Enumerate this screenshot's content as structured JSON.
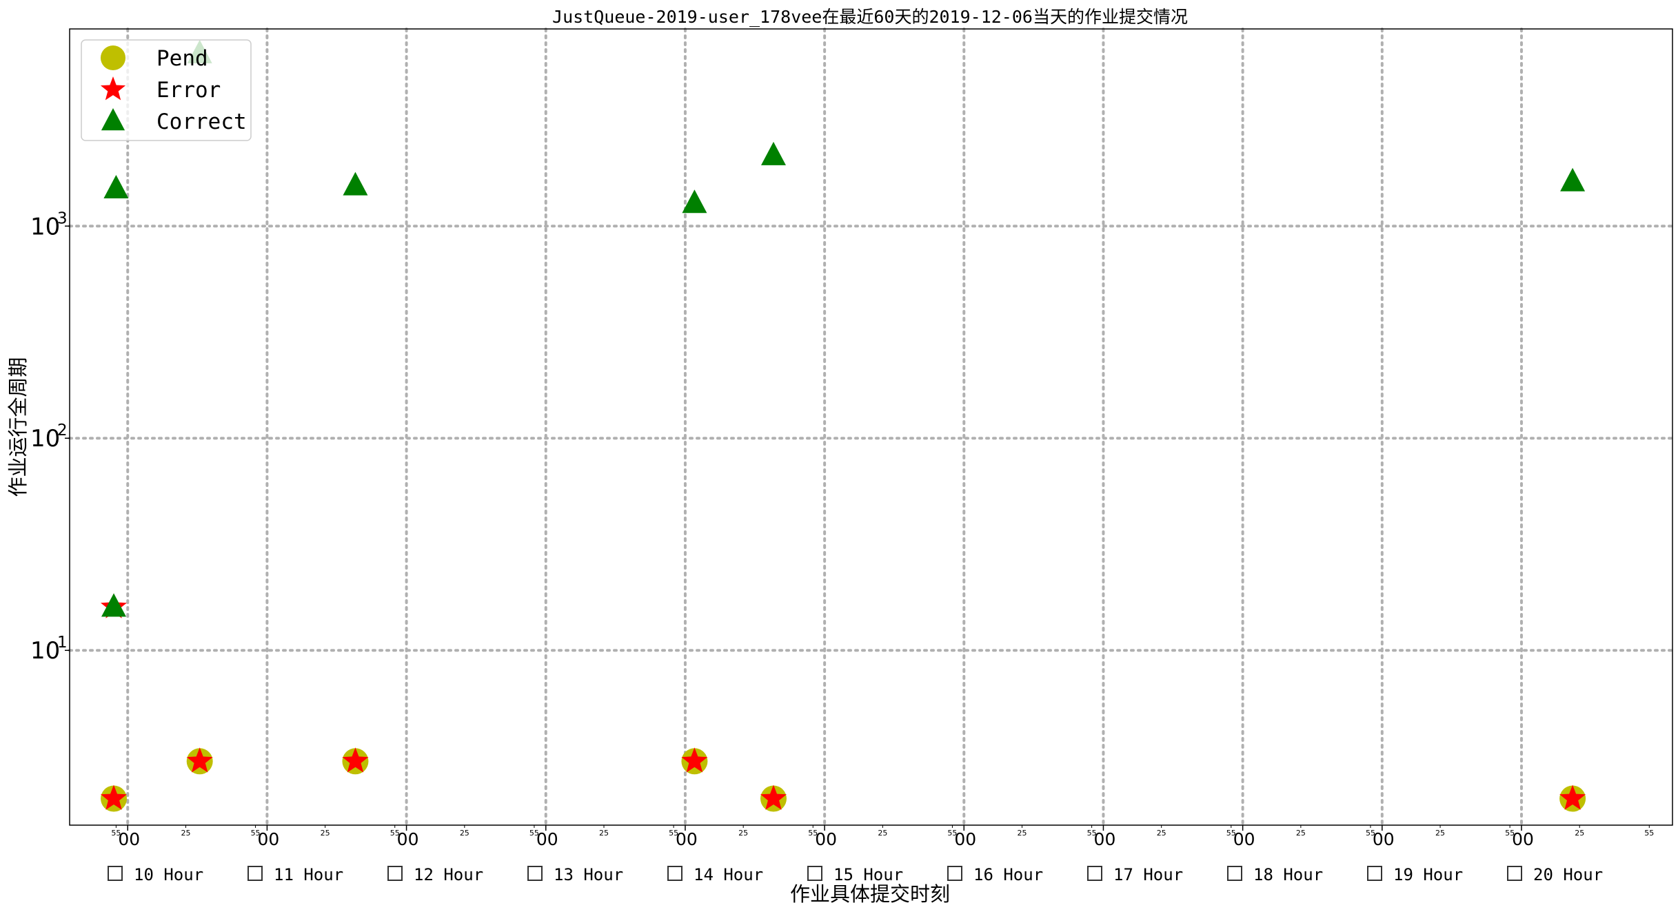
{
  "chart_data": {
    "type": "scatter",
    "title": "JustQueue-2019-user_178vee在最近60天的2019-12-06当天的作业提交情况",
    "xlabel": "作业具体提交时刻",
    "ylabel": "作业运行全周期",
    "yscale": "log",
    "ylim": [
      1.5,
      8500
    ],
    "xlim": [
      "09:35",
      "21:05"
    ],
    "yticks": [
      {
        "base": "10",
        "exp": "1",
        "value": 10
      },
      {
        "base": "10",
        "exp": "2",
        "value": 100
      },
      {
        "base": "10",
        "exp": "3",
        "value": 1000
      }
    ],
    "x_major_ticks": [
      {
        "time": "10:00",
        "label": "00"
      },
      {
        "time": "11:00",
        "label": "00"
      },
      {
        "time": "12:00",
        "label": "00"
      },
      {
        "time": "13:00",
        "label": "00"
      },
      {
        "time": "14:00",
        "label": "00"
      },
      {
        "time": "15:00",
        "label": "00"
      },
      {
        "time": "16:00",
        "label": "00"
      },
      {
        "time": "17:00",
        "label": "00"
      },
      {
        "time": "18:00",
        "label": "00"
      },
      {
        "time": "19:00",
        "label": "00"
      },
      {
        "time": "20:00",
        "label": "00"
      }
    ],
    "x_minor_tick_labels": [
      "25",
      "55"
    ],
    "hour_labels": [
      "10 Hour",
      "11 Hour",
      "12 Hour",
      "13 Hour",
      "14 Hour",
      "15 Hour",
      "16 Hour",
      "17 Hour",
      "18 Hour",
      "19 Hour",
      "20 Hour"
    ],
    "grid": true,
    "legend_position": "top-left",
    "series": [
      {
        "name": "Pend",
        "marker": "circle",
        "color": "#bfbf00",
        "points": [
          {
            "x": "09:54",
            "y": 2
          },
          {
            "x": "10:31",
            "y": 3
          },
          {
            "x": "11:38",
            "y": 3
          },
          {
            "x": "14:04",
            "y": 3
          },
          {
            "x": "14:38",
            "y": 2
          },
          {
            "x": "20:22",
            "y": 2
          }
        ]
      },
      {
        "name": "Error",
        "marker": "star",
        "color": "#ff0000",
        "points": [
          {
            "x": "09:54",
            "y": 2
          },
          {
            "x": "09:54",
            "y": 16
          },
          {
            "x": "10:31",
            "y": 3
          },
          {
            "x": "11:38",
            "y": 3
          },
          {
            "x": "14:04",
            "y": 3
          },
          {
            "x": "14:38",
            "y": 2
          },
          {
            "x": "20:22",
            "y": 2
          }
        ]
      },
      {
        "name": "Correct",
        "marker": "triangle",
        "color": "#008000",
        "points": [
          {
            "x": "09:54",
            "y": 16
          },
          {
            "x": "09:55",
            "y": 1500
          },
          {
            "x": "10:31",
            "y": 6500
          },
          {
            "x": "11:38",
            "y": 1550
          },
          {
            "x": "14:04",
            "y": 1280
          },
          {
            "x": "14:38",
            "y": 2150
          },
          {
            "x": "20:22",
            "y": 1620
          }
        ]
      }
    ]
  }
}
